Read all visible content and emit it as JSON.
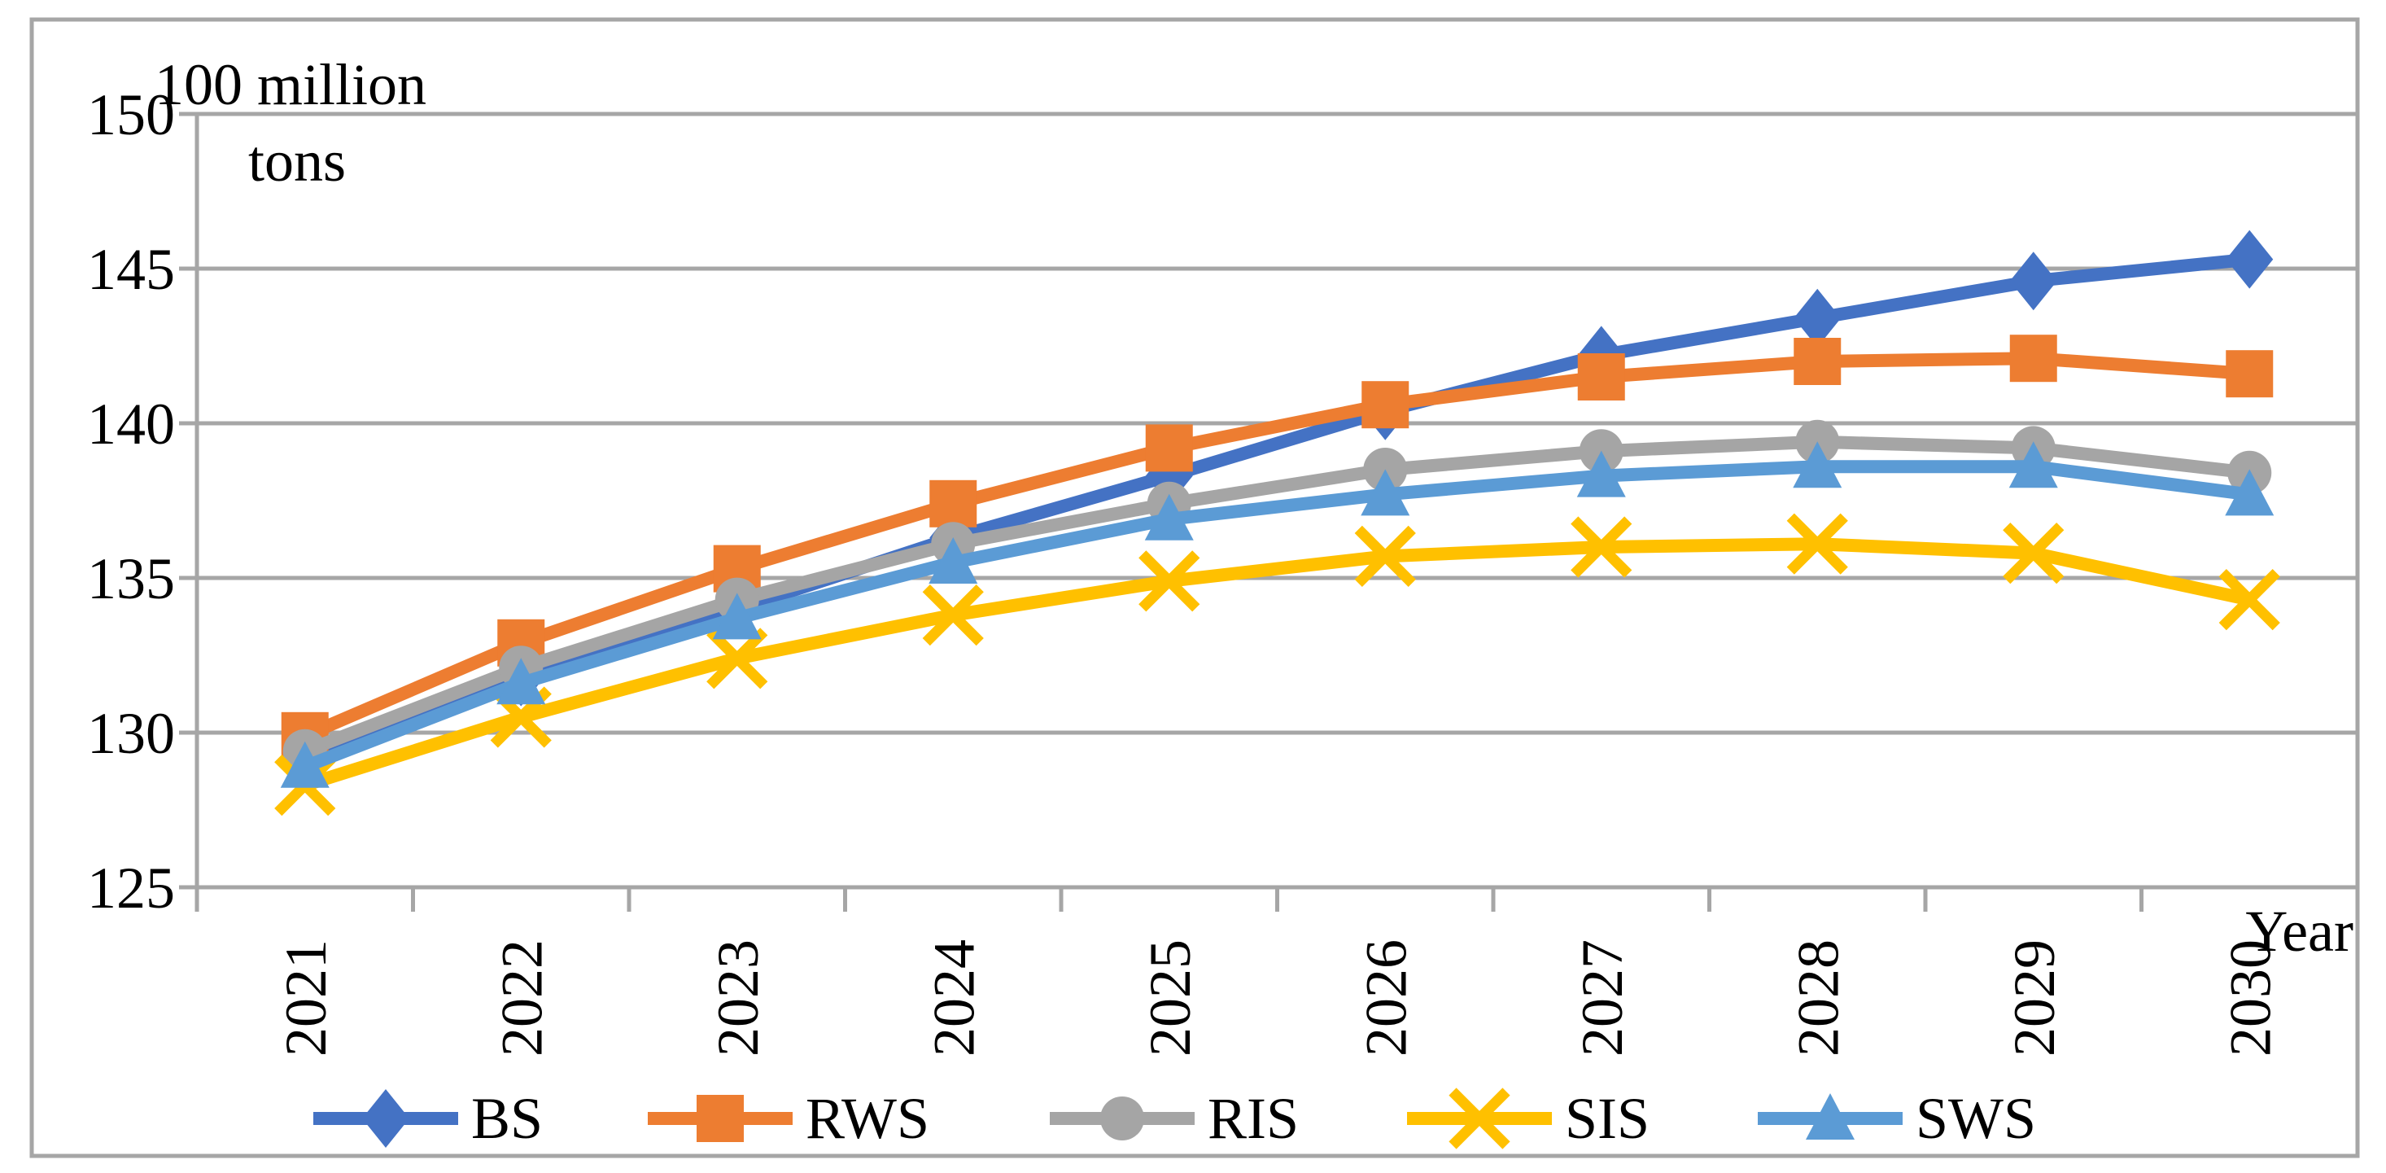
{
  "chart_data": {
    "type": "line",
    "title_lines": [
      "100 million",
      "tons"
    ],
    "x_axis_label": "Year",
    "categories": [
      "2021",
      "2022",
      "2023",
      "2024",
      "2025",
      "2026",
      "2027",
      "2028",
      "2029",
      "2030"
    ],
    "y_ticks": [
      150,
      145,
      140,
      135,
      130,
      125
    ],
    "ylim": [
      125,
      150
    ],
    "grid": true,
    "legend_position": "bottom",
    "series": [
      {
        "name": "BS",
        "color": "#4472C4",
        "marker": "diamond",
        "values": [
          129.0,
          131.8,
          134.0,
          136.3,
          138.3,
          140.4,
          142.2,
          143.4,
          144.6,
          145.3
        ]
      },
      {
        "name": "RWS",
        "color": "#ED7D31",
        "marker": "square",
        "values": [
          129.9,
          132.9,
          135.3,
          137.4,
          139.2,
          140.6,
          141.5,
          142.0,
          142.1,
          141.6
        ]
      },
      {
        "name": "RIS",
        "color": "#A5A5A5",
        "marker": "circle",
        "values": [
          129.4,
          132.1,
          134.3,
          136.1,
          137.4,
          138.5,
          139.1,
          139.4,
          139.2,
          138.4
        ]
      },
      {
        "name": "SIS",
        "color": "#FFC000",
        "marker": "x",
        "values": [
          128.3,
          130.5,
          132.4,
          133.8,
          134.9,
          135.7,
          136.0,
          136.1,
          135.8,
          134.3
        ]
      },
      {
        "name": "SWS",
        "color": "#5B9BD5",
        "marker": "triangle",
        "values": [
          128.9,
          131.6,
          133.7,
          135.5,
          136.9,
          137.7,
          138.3,
          138.6,
          138.6,
          137.7
        ]
      }
    ]
  },
  "colors": {
    "background": "#FFFFFF",
    "border": "#A6A6A6",
    "grid": "#A6A6A6",
    "axis": "#A6A6A6",
    "text": "#000000"
  }
}
